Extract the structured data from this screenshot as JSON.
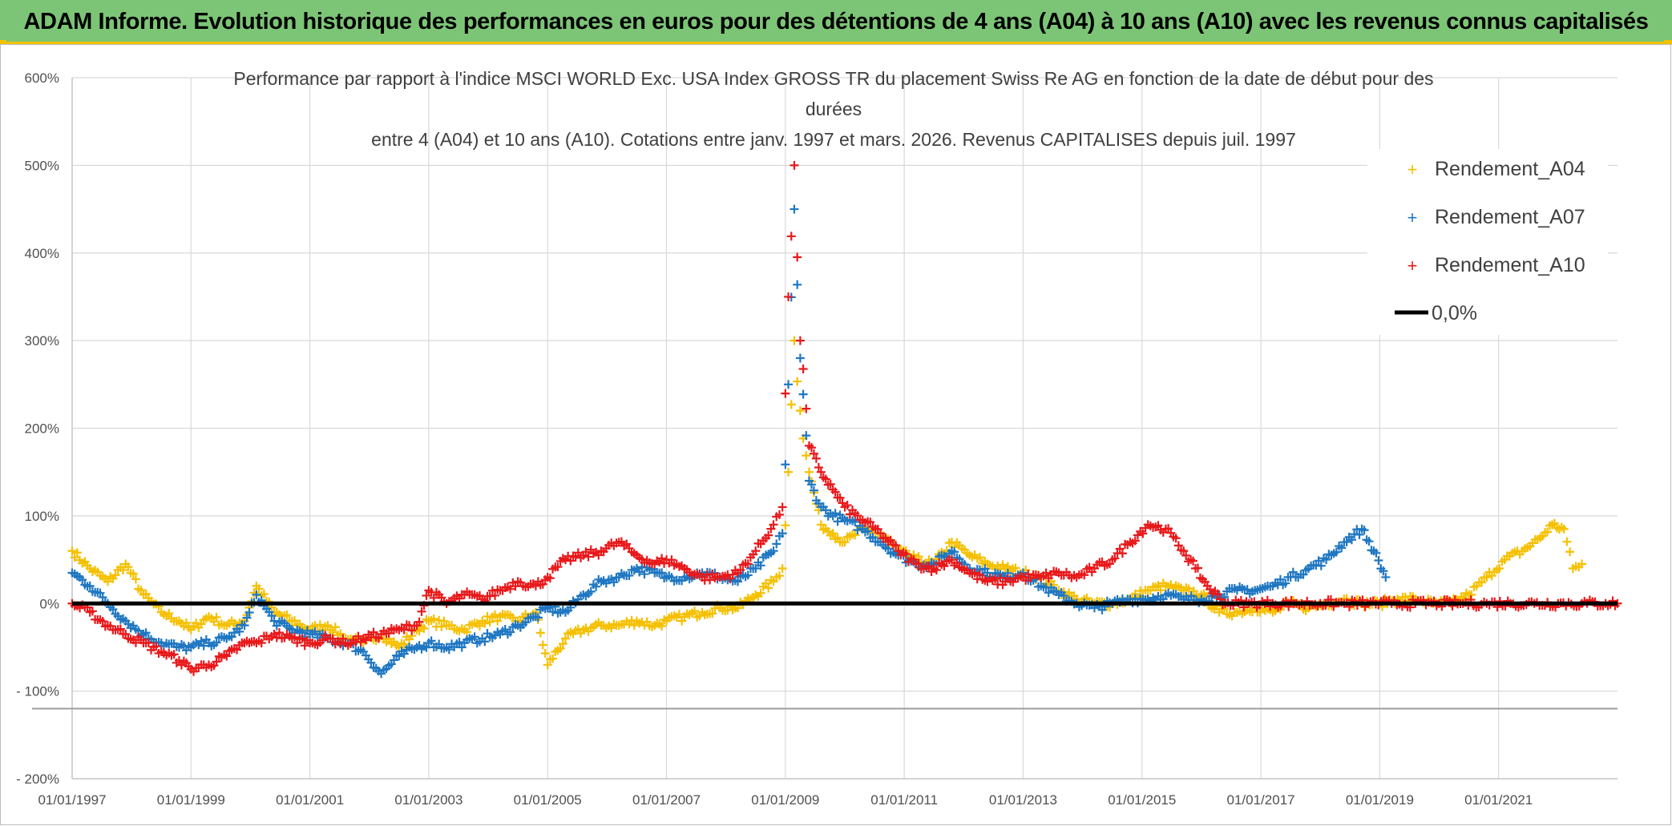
{
  "header": {
    "title": "ADAM Informe. Evolution historique des performances en euros pour des détentions de 4 ans (A04) à 10 ans (A10) avec les revenus connus capitalisés"
  },
  "chart_data": {
    "type": "scatter",
    "title_lines": [
      "Performance par rapport à l'indice MSCI WORLD Exc. USA Index GROSS TR  du placement Swiss Re AG en fonction de la date de début pour des",
      "durées",
      "entre 4 (A04) et 10 ans (A10). Cotations entre janv. 1997 et mars. 2026. Revenus CAPITALISES depuis juil. 1997"
    ],
    "xlabel": "",
    "ylabel": "",
    "xlim": [
      1997.0,
      2023.0
    ],
    "ylim": [
      -200,
      600
    ],
    "x_tick_labels": [
      "01/01/1997",
      "01/01/1999",
      "01/01/2001",
      "01/01/2003",
      "01/01/2005",
      "01/01/2007",
      "01/01/2009",
      "01/01/2011",
      "01/01/2013",
      "01/01/2015",
      "01/01/2017",
      "01/01/2019",
      "01/01/2021"
    ],
    "x_tick_values": [
      1997,
      1999,
      2001,
      2003,
      2005,
      2007,
      2009,
      2011,
      2013,
      2015,
      2017,
      2019,
      2021
    ],
    "y_tick_values": [
      600,
      500,
      400,
      300,
      200,
      100,
      0,
      -100,
      -200
    ],
    "y_tick_labels": [
      "600%",
      "500%",
      "400%",
      "300%",
      "200%",
      "100%",
      "0%",
      "- 100%",
      "- 200%"
    ],
    "reference_line_y": -120,
    "series": [
      {
        "name": "Rendement_A04",
        "color": "#f5c000",
        "marker": "+",
        "x": [
          1997.0,
          1997.3,
          1997.6,
          1997.9,
          1998.2,
          1998.5,
          1998.8,
          1999.0,
          1999.3,
          1999.6,
          1999.9,
          2000.1,
          2000.4,
          2000.7,
          2001.0,
          2001.3,
          2001.6,
          2001.9,
          2002.2,
          2002.5,
          2002.8,
          2003.0,
          2003.3,
          2003.6,
          2003.9,
          2004.2,
          2004.5,
          2004.8,
          2005.0,
          2005.3,
          2005.6,
          2005.9,
          2006.2,
          2006.5,
          2006.8,
          2007.0,
          2007.3,
          2007.6,
          2007.9,
          2008.2,
          2008.5,
          2008.8,
          2008.95,
          2009.05,
          2009.15,
          2009.25,
          2009.4,
          2009.6,
          2009.8,
          2010.0,
          2010.3,
          2010.6,
          2010.9,
          2011.2,
          2011.5,
          2011.8,
          2012.1,
          2012.4,
          2012.7,
          2013.0,
          2013.3,
          2013.6,
          2013.9,
          2014.2,
          2014.5,
          2014.8,
          2015.1,
          2015.4,
          2015.7,
          2016.0,
          2016.3,
          2016.6,
          2016.9,
          2017.2,
          2017.5,
          2017.8,
          2018.1,
          2018.4,
          2018.7,
          2019.0,
          2019.3,
          2019.6,
          2019.9,
          2020.2,
          2020.5,
          2020.8,
          2021.1,
          2021.4,
          2021.7,
          2021.9,
          2022.1,
          2022.25,
          2022.4
        ],
        "values": [
          60,
          40,
          25,
          45,
          10,
          -10,
          -20,
          -30,
          -15,
          -25,
          -20,
          20,
          -10,
          -20,
          -30,
          -25,
          -40,
          -45,
          -35,
          -50,
          -30,
          -20,
          -25,
          -30,
          -20,
          -15,
          -20,
          -10,
          -70,
          -40,
          -30,
          -25,
          -25,
          -20,
          -25,
          -20,
          -15,
          -10,
          -5,
          -5,
          10,
          25,
          40,
          150,
          300,
          220,
          150,
          90,
          80,
          70,
          85,
          80,
          60,
          50,
          45,
          70,
          55,
          45,
          40,
          35,
          30,
          15,
          5,
          0,
          0,
          5,
          15,
          20,
          15,
          10,
          -10,
          -10,
          -5,
          -10,
          0,
          -5,
          0,
          5,
          0,
          0,
          5,
          5,
          0,
          0,
          10,
          30,
          50,
          60,
          75,
          90,
          85,
          40,
          45
        ]
      },
      {
        "name": "Rendement_A07",
        "color": "#1f77c2",
        "marker": "+",
        "x": [
          1997.0,
          1997.3,
          1997.6,
          1997.9,
          1998.2,
          1998.5,
          1998.8,
          1999.0,
          1999.3,
          1999.6,
          1999.9,
          2000.1,
          2000.4,
          2000.7,
          2001.0,
          2001.3,
          2001.6,
          2001.9,
          2002.2,
          2002.5,
          2002.8,
          2003.0,
          2003.3,
          2003.6,
          2003.9,
          2004.2,
          2004.5,
          2004.8,
          2005.0,
          2005.3,
          2005.6,
          2005.9,
          2006.2,
          2006.5,
          2006.8,
          2007.0,
          2007.3,
          2007.6,
          2007.9,
          2008.2,
          2008.5,
          2008.8,
          2008.95,
          2009.05,
          2009.15,
          2009.25,
          2009.4,
          2009.6,
          2009.8,
          2010.0,
          2010.3,
          2010.6,
          2010.9,
          2011.2,
          2011.5,
          2011.8,
          2012.1,
          2012.4,
          2012.7,
          2013.0,
          2013.3,
          2013.6,
          2013.9,
          2014.2,
          2014.5,
          2014.8,
          2015.1,
          2015.4,
          2015.7,
          2016.0,
          2016.3,
          2016.6,
          2016.9,
          2017.2,
          2017.5,
          2017.8,
          2018.1,
          2018.4,
          2018.7,
          2018.9,
          2019.1
        ],
        "values": [
          35,
          20,
          0,
          -20,
          -35,
          -45,
          -50,
          -50,
          -45,
          -40,
          -25,
          10,
          -20,
          -30,
          -35,
          -40,
          -45,
          -55,
          -80,
          -60,
          -50,
          -45,
          -50,
          -45,
          -40,
          -35,
          -25,
          -15,
          -5,
          -10,
          10,
          25,
          30,
          40,
          35,
          30,
          30,
          35,
          30,
          25,
          40,
          60,
          80,
          250,
          450,
          280,
          140,
          110,
          100,
          95,
          85,
          70,
          55,
          45,
          45,
          60,
          40,
          35,
          30,
          35,
          20,
          10,
          0,
          -5,
          0,
          5,
          5,
          10,
          5,
          5,
          10,
          15,
          15,
          20,
          30,
          40,
          50,
          70,
          85,
          60,
          30
        ]
      },
      {
        "name": "Rendement_A10",
        "color": "#e8191b",
        "marker": "+",
        "x": [
          1997.0,
          1997.3,
          1997.6,
          1997.9,
          1998.2,
          1998.5,
          1998.8,
          1999.0,
          1999.3,
          1999.6,
          1999.9,
          2000.1,
          2000.4,
          2000.7,
          2001.0,
          2001.3,
          2001.6,
          2001.9,
          2002.2,
          2002.5,
          2002.8,
          2003.0,
          2003.3,
          2003.6,
          2003.9,
          2004.2,
          2004.5,
          2004.8,
          2005.0,
          2005.3,
          2005.6,
          2005.9,
          2006.2,
          2006.5,
          2006.8,
          2007.0,
          2007.3,
          2007.6,
          2007.9,
          2008.2,
          2008.5,
          2008.8,
          2008.95,
          2009.05,
          2009.15,
          2009.25,
          2009.4,
          2009.6,
          2009.8,
          2010.0,
          2010.3,
          2010.6,
          2010.9,
          2011.2,
          2011.5,
          2011.8,
          2012.1,
          2012.4,
          2012.7,
          2013.0,
          2013.3,
          2013.6,
          2013.9,
          2014.2,
          2014.5,
          2014.8,
          2015.1,
          2015.4,
          2015.7,
          2015.9,
          2016.1,
          2016.4,
          2016.8,
          2017.2,
          2017.6,
          2018.0,
          2018.4,
          2018.8,
          2019.2,
          2019.6,
          2020.0,
          2020.4,
          2020.8,
          2021.2,
          2021.6,
          2022.0,
          2022.4,
          2022.8,
          2023.0
        ],
        "values": [
          0,
          -10,
          -25,
          -35,
          -45,
          -55,
          -65,
          -75,
          -70,
          -60,
          -45,
          -45,
          -35,
          -40,
          -45,
          -40,
          -45,
          -40,
          -35,
          -30,
          -25,
          15,
          0,
          10,
          5,
          15,
          25,
          20,
          30,
          50,
          55,
          60,
          70,
          55,
          45,
          50,
          40,
          30,
          30,
          35,
          60,
          90,
          110,
          350,
          500,
          300,
          180,
          150,
          130,
          110,
          95,
          80,
          60,
          45,
          40,
          50,
          35,
          25,
          25,
          30,
          30,
          35,
          30,
          40,
          50,
          70,
          90,
          85,
          60,
          40,
          20,
          0,
          0,
          0,
          0,
          0,
          0,
          0,
          0,
          0,
          0,
          0,
          0,
          0,
          0,
          0,
          0,
          0,
          0
        ]
      }
    ],
    "zero_line": {
      "name": "0,0%",
      "color": "#000000",
      "y": 0
    },
    "legend": {
      "position": "top-right",
      "entries": [
        "Rendement_A04",
        "Rendement_A07",
        "Rendement_A10",
        "0,0%"
      ]
    }
  }
}
